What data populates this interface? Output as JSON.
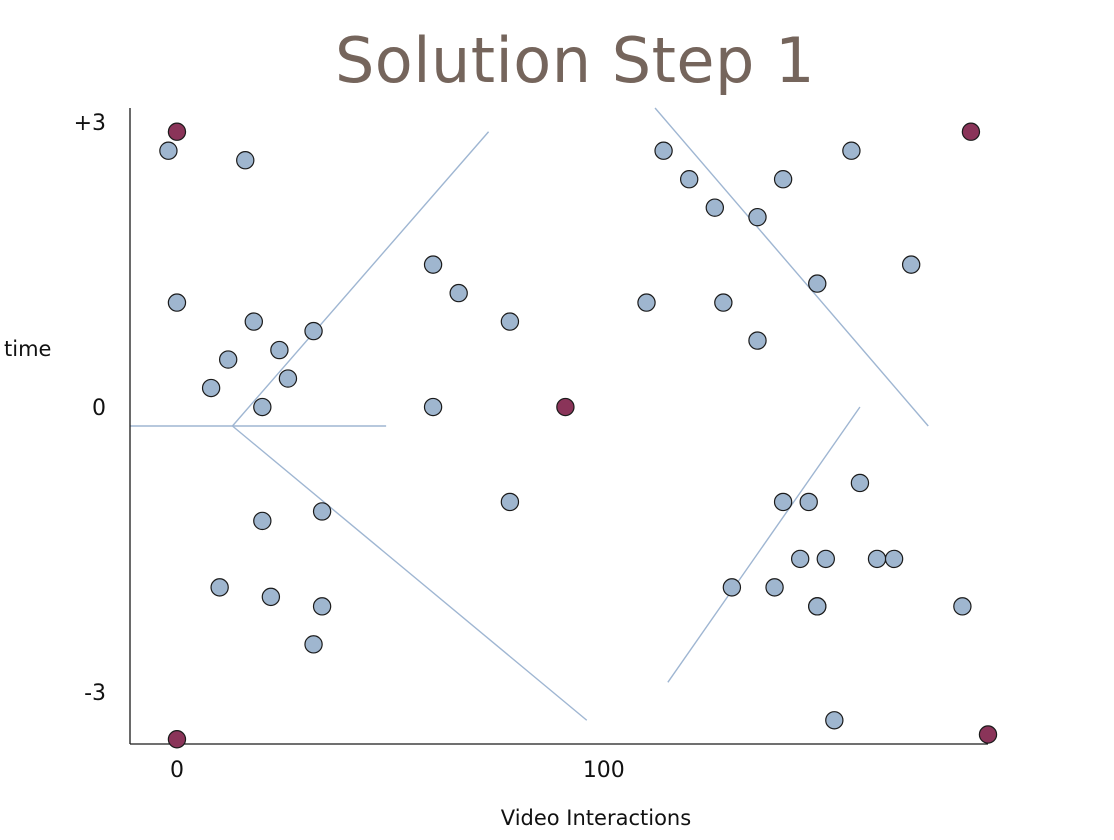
{
  "slide": {
    "title": "Solution Step 1"
  },
  "chart_data": {
    "type": "scatter",
    "xlabel": "Video Interactions",
    "ylabel": "time",
    "x_ticks": [
      {
        "value": 0,
        "label": "0"
      },
      {
        "value": 100,
        "label": "100"
      }
    ],
    "y_ticks": [
      {
        "value": 3,
        "label": "+3"
      },
      {
        "value": 0,
        "label": "0"
      },
      {
        "value": -3,
        "label": "-3"
      }
    ],
    "xlim": [
      -11,
      190
    ],
    "ylim": [
      -3.55,
      3.15
    ],
    "grid": false,
    "legend": "none",
    "colors": {
      "data_point": "#9fb6cf",
      "center_point": "#8a3459",
      "divider_line": "#9fb6d2",
      "axis": "#1a1a1a",
      "title": "#75655c"
    },
    "series": [
      {
        "role": "data_points",
        "x": [
          -2,
          0,
          16,
          18,
          8,
          12,
          24,
          20,
          26,
          32,
          60,
          66,
          60,
          78,
          78,
          20,
          34,
          10,
          22,
          34,
          32,
          114,
          120,
          126,
          136,
          142,
          110,
          128,
          136,
          158,
          150,
          172,
          142,
          148,
          152,
          160,
          164,
          146,
          150,
          130,
          140,
          150,
          168,
          184,
          154
        ],
        "y": [
          2.7,
          1.1,
          2.6,
          0.9,
          0.2,
          0.5,
          0.6,
          0.0,
          0.3,
          0.8,
          1.5,
          1.2,
          0.0,
          0.9,
          -1.0,
          -1.2,
          -1.1,
          -1.9,
          -2.0,
          -2.1,
          -2.5,
          2.7,
          2.4,
          2.1,
          2.0,
          2.4,
          1.1,
          1.1,
          0.7,
          2.7,
          1.3,
          1.5,
          -1.0,
          -1.0,
          -1.6,
          -0.8,
          -1.6,
          -1.6,
          -2.1,
          -1.9,
          -1.9,
          -2.1,
          -1.6,
          -2.1,
          -3.3
        ]
      },
      {
        "role": "center_points",
        "x": [
          0,
          186,
          0,
          190,
          91
        ],
        "y": [
          2.9,
          2.9,
          -3.5,
          -3.45,
          0.0
        ]
      }
    ],
    "boundaries": [
      {
        "x": [
          -11,
          13
        ],
        "y": [
          -0.2,
          -0.2
        ]
      },
      {
        "x": [
          13,
          49
        ],
        "y": [
          -0.2,
          -0.2
        ]
      },
      {
        "x": [
          13,
          73
        ],
        "y": [
          -0.2,
          2.9
        ]
      },
      {
        "x": [
          13,
          96
        ],
        "y": [
          -0.2,
          -3.3
        ]
      },
      {
        "x": [
          112,
          176
        ],
        "y": [
          3.15,
          -0.2
        ]
      },
      {
        "x": [
          115,
          160
        ],
        "y": [
          -2.9,
          0.0
        ]
      }
    ]
  }
}
